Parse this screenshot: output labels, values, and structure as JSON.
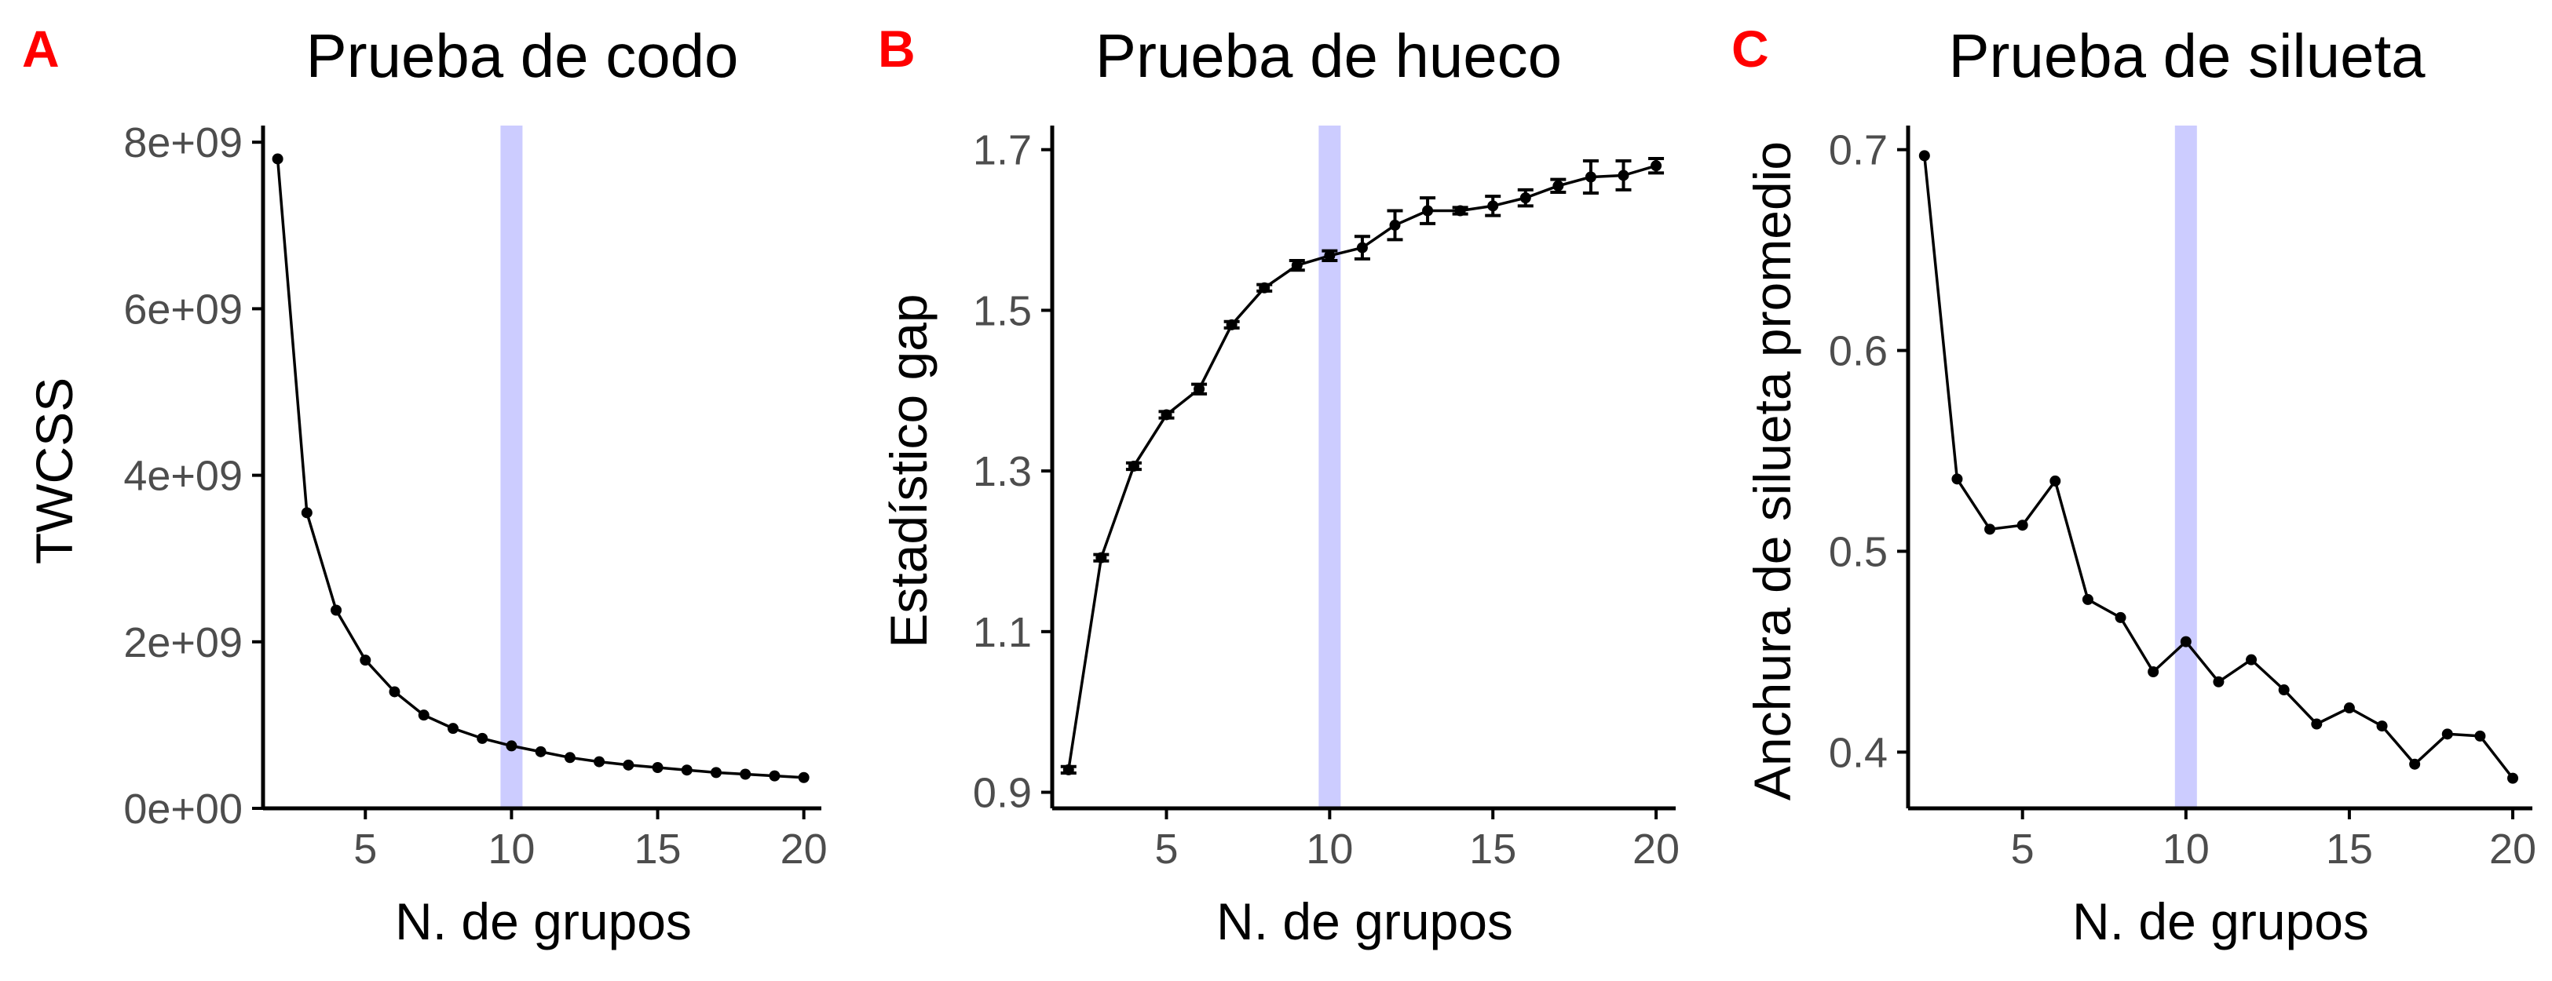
{
  "colors": {
    "highlight": "#ccccff",
    "line": "#000000",
    "axis": "#000000",
    "tick_text": "#4d4d4d",
    "panel_letter": "#ff0000"
  },
  "chart_data": [
    {
      "panel": "A",
      "type": "line",
      "title": "Prueba de codo",
      "xlabel": "N. de grupos",
      "ylabel": "TWCSS",
      "xlim": [
        1.5,
        20.6
      ],
      "ylim": [
        0,
        8200000000.0
      ],
      "xticks": [
        5,
        10,
        15,
        20
      ],
      "xtick_labels": [
        "5",
        "10",
        "15",
        "20"
      ],
      "yticks": [
        0,
        2000000000.0,
        4000000000.0,
        6000000000.0,
        8000000000.0
      ],
      "ytick_labels": [
        "0e+00",
        "2e+09",
        "4e+09",
        "6e+09",
        "8e+09"
      ],
      "highlight_x": 10,
      "grid": false,
      "x": [
        2,
        3,
        4,
        5,
        6,
        7,
        8,
        9,
        10,
        11,
        12,
        13,
        14,
        15,
        16,
        17,
        18,
        19,
        20
      ],
      "y": [
        7800000000.0,
        3550000000.0,
        2380000000.0,
        1780000000.0,
        1400000000.0,
        1120000000.0,
        960000000.0,
        840000000.0,
        750000000.0,
        680000000.0,
        610000000.0,
        560000000.0,
        520000000.0,
        490000000.0,
        460000000.0,
        430000000.0,
        410000000.0,
        390000000.0,
        370000000.0
      ]
    },
    {
      "panel": "B",
      "type": "line",
      "title": "Prueba de hueco",
      "xlabel": "N. de grupos",
      "ylabel": "Estadístico gap",
      "xlim": [
        1.5,
        20.6
      ],
      "ylim": [
        0.88,
        1.73
      ],
      "xticks": [
        5,
        10,
        15,
        20
      ],
      "xtick_labels": [
        "5",
        "10",
        "15",
        "20"
      ],
      "yticks": [
        0.9,
        1.1,
        1.3,
        1.5,
        1.7
      ],
      "ytick_labels": [
        "0.9",
        "1.1",
        "1.3",
        "1.5",
        "1.7"
      ],
      "highlight_x": 10,
      "grid": false,
      "x": [
        2,
        3,
        4,
        5,
        6,
        7,
        8,
        9,
        10,
        11,
        12,
        13,
        14,
        15,
        16,
        17,
        18,
        19,
        20
      ],
      "y": [
        0.928,
        1.192,
        1.306,
        1.37,
        1.402,
        1.482,
        1.528,
        1.556,
        1.568,
        1.578,
        1.606,
        1.624,
        1.624,
        1.63,
        1.64,
        1.655,
        1.666,
        1.668,
        1.68
      ],
      "error": [
        0.004,
        0.004,
        0.004,
        0.004,
        0.006,
        0.004,
        0.004,
        0.006,
        0.006,
        0.014,
        0.018,
        0.016,
        0.004,
        0.012,
        0.01,
        0.008,
        0.02,
        0.018,
        0.009
      ]
    },
    {
      "panel": "C",
      "type": "line",
      "title": "Prueba de silueta",
      "xlabel": "N. de grupos",
      "ylabel": "Anchura de silueta promedio",
      "xlim": [
        1.5,
        20.6
      ],
      "ylim": [
        0.372,
        0.712
      ],
      "xticks": [
        5,
        10,
        15,
        20
      ],
      "xtick_labels": [
        "5",
        "10",
        "15",
        "20"
      ],
      "yticks": [
        0.4,
        0.5,
        0.6,
        0.7
      ],
      "ytick_labels": [
        "0.4",
        "0.5",
        "0.6",
        "0.7"
      ],
      "highlight_x": 10,
      "grid": false,
      "x": [
        2,
        3,
        4,
        5,
        6,
        7,
        8,
        9,
        10,
        11,
        12,
        13,
        14,
        15,
        16,
        17,
        18,
        19,
        20
      ],
      "y": [
        0.697,
        0.536,
        0.511,
        0.513,
        0.535,
        0.476,
        0.467,
        0.44,
        0.455,
        0.435,
        0.446,
        0.431,
        0.414,
        0.422,
        0.413,
        0.394,
        0.409,
        0.408,
        0.387
      ]
    }
  ]
}
